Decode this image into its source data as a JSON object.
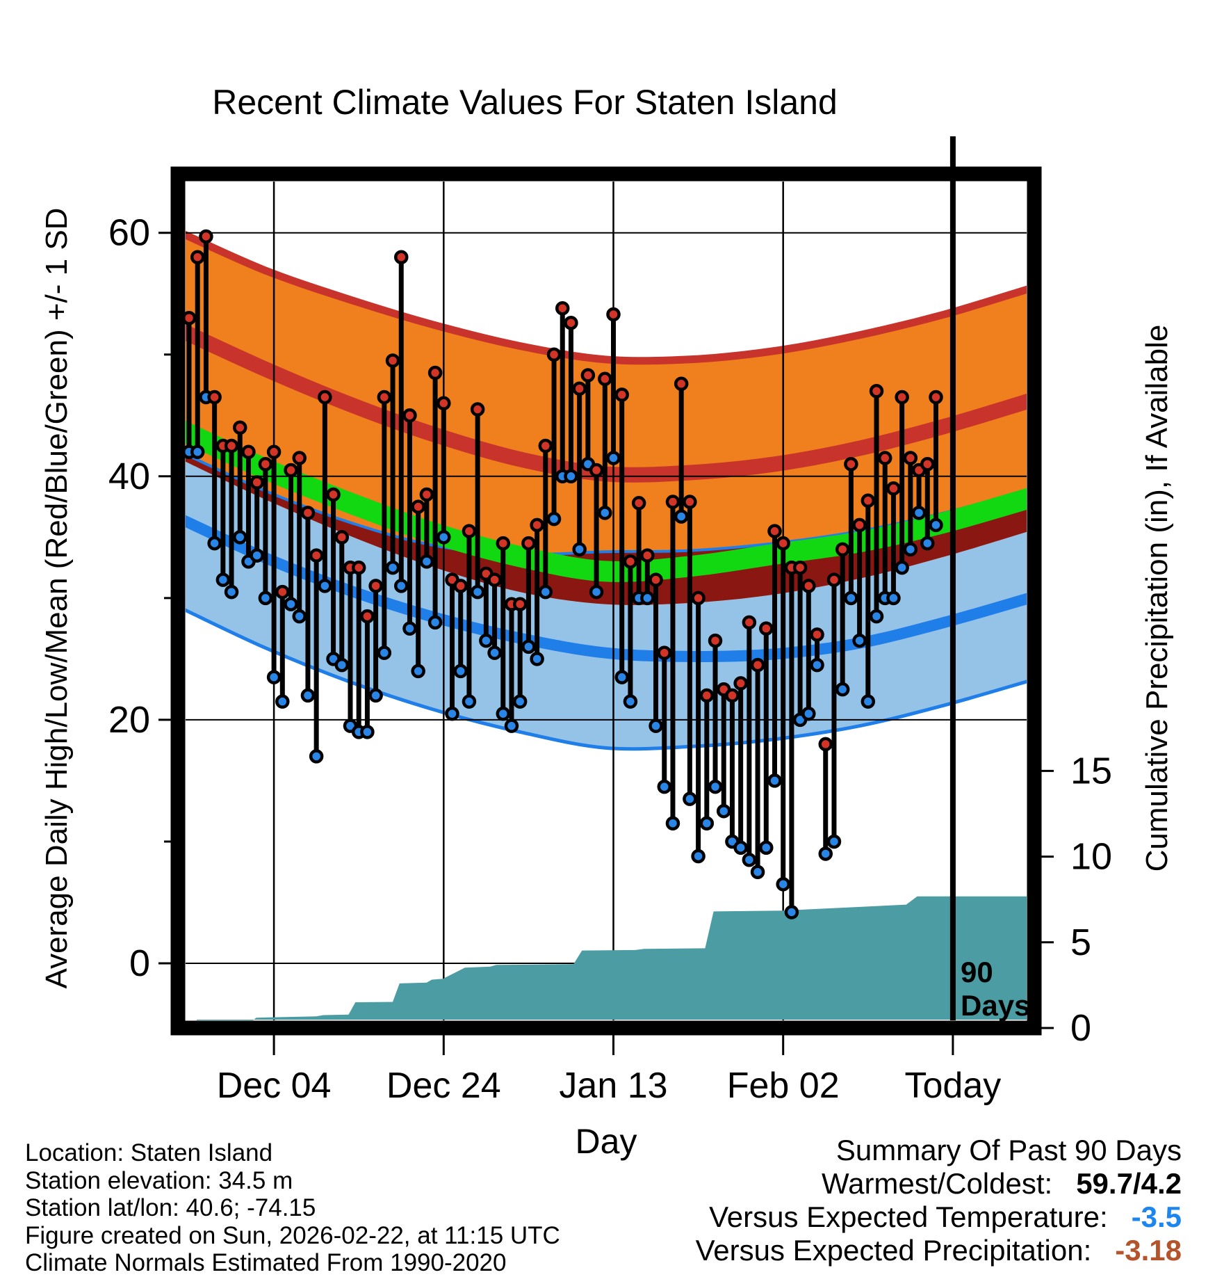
{
  "title": "Recent Climate Values For Staten Island",
  "axis": {
    "left_title": "Average Daily High/Low/Mean (Red/Blue/Green) +/- 1 SD",
    "right_title": "Cumulative Precipitation (in), If Available",
    "x_title": "Day"
  },
  "footer_left": {
    "lines": [
      "Location: Staten Island",
      "Station elevation: 34.5 m",
      "Station lat/lon: 40.6; -74.15",
      "Figure created on Sun, 2026-02-22, at 11:15 UTC",
      "Climate Normals Estimated From 1990-2020"
    ]
  },
  "summary": {
    "heading": "Summary Of Past 90 Days",
    "rows": [
      {
        "label": "Warmest/Coldest:",
        "value": "59.7/4.2",
        "color": "#000000"
      },
      {
        "label": "Versus Expected Temperature:",
        "value": "-3.5",
        "color": "#1C86EE"
      },
      {
        "label": "Versus Expected Precipitation:",
        "value": "-3.18",
        "color": "#B4542C"
      }
    ]
  },
  "chart_data": {
    "type": "line",
    "title": "Recent Climate Values For Staten Island",
    "xlabel": "Day",
    "ylabel_left": "Average Daily High/Low/Mean (Red/Blue/Green) +/- 1 SD",
    "ylabel_right": "Cumulative Precipitation (in), If Available",
    "grid": true,
    "x_ticks": [
      {
        "label": "Dec 04",
        "day": 11
      },
      {
        "label": "Dec 24",
        "day": 31
      },
      {
        "label": "Jan 13",
        "day": 51
      },
      {
        "label": "Feb 02",
        "day": 71
      },
      {
        "label": "Today",
        "day": 91
      }
    ],
    "y_left_ticks": [
      0,
      20,
      40,
      60
    ],
    "y_left_minor_ticks": [
      10,
      30,
      50
    ],
    "y_right_ticks": [
      0,
      5,
      10,
      15
    ],
    "ninety_line_day": 91,
    "ninety_label": [
      "90",
      "Days"
    ],
    "bands": {
      "note": "climate normal curves, deg F, sampled every 10 days",
      "days": [
        0,
        10,
        20,
        30,
        40,
        50,
        60,
        70,
        80,
        90,
        100
      ],
      "high_plus_sd": [
        60.0,
        56.9,
        54.5,
        52.4,
        50.7,
        49.6,
        49.6,
        50.3,
        51.6,
        53.3,
        55.4
      ],
      "high_mean": [
        52.0,
        48.8,
        45.9,
        43.4,
        41.4,
        40.2,
        40.3,
        41.0,
        42.3,
        44.1,
        46.2
      ],
      "mean": [
        43.8,
        40.6,
        37.8,
        35.3,
        33.4,
        32.2,
        32.6,
        33.6,
        34.6,
        36.2,
        38.2
      ],
      "high_minus_sd": [
        41.4,
        38.1,
        35.1,
        32.5,
        30.5,
        29.5,
        29.6,
        30.3,
        31.6,
        33.4,
        35.5
      ],
      "low_plus_sd": [
        42.0,
        38.8,
        36.2,
        34.3,
        33.6,
        33.8,
        33.9,
        34.5,
        35.5,
        37.0,
        38.9
      ],
      "low_mean": [
        36.5,
        33.3,
        30.6,
        28.4,
        26.7,
        25.5,
        25.2,
        25.4,
        26.3,
        28.0,
        30.0
      ],
      "low_minus_sd": [
        29.2,
        25.9,
        23.1,
        20.8,
        19.0,
        17.7,
        17.8,
        18.4,
        19.5,
        21.2,
        23.2
      ]
    },
    "daily": {
      "note": "day 1 = start of 90-day window; observed daily high/low deg F",
      "days": [
        1,
        2,
        3,
        4,
        5,
        6,
        7,
        8,
        9,
        10,
        11,
        12,
        13,
        14,
        15,
        16,
        17,
        18,
        19,
        20,
        21,
        22,
        23,
        24,
        25,
        26,
        27,
        28,
        29,
        30,
        31,
        32,
        33,
        34,
        35,
        36,
        37,
        38,
        39,
        40,
        41,
        42,
        43,
        44,
        45,
        46,
        47,
        48,
        49,
        50,
        51,
        52,
        53,
        54,
        55,
        56,
        57,
        58,
        59,
        60,
        61,
        62,
        63,
        64,
        65,
        66,
        67,
        68,
        69,
        70,
        71,
        72,
        73,
        74,
        75,
        76,
        77,
        78,
        79,
        80,
        81,
        82,
        83,
        84,
        85,
        86,
        87,
        88,
        89
      ],
      "high": [
        53,
        58,
        59.7,
        46.5,
        42.5,
        42.5,
        44,
        42,
        39.5,
        41,
        42,
        30.5,
        40.5,
        41.5,
        37,
        33.5,
        46.5,
        38.5,
        35,
        32.5,
        32.5,
        28.5,
        31,
        46.5,
        49.5,
        58,
        45,
        37.5,
        38.5,
        48.5,
        46,
        31.5,
        31,
        35.5,
        45.5,
        32,
        31.5,
        34.5,
        29.5,
        29.5,
        34.5,
        36,
        42.5,
        50,
        53.8,
        52.6,
        47.2,
        48.3,
        40.5,
        48,
        53.3,
        46.7,
        33,
        37.8,
        33.5,
        31.5,
        25.5,
        37.9,
        47.6,
        37.9,
        30,
        22,
        26.5,
        22.5,
        22,
        23,
        28,
        24.5,
        27.5,
        35.5,
        34.5,
        32.5,
        32.5,
        31,
        27,
        18,
        31.5,
        34,
        41,
        36,
        38,
        47,
        41.5,
        39,
        46.5,
        41.5,
        40.5,
        41,
        46.5
      ],
      "low": [
        42,
        42,
        46.5,
        34.5,
        31.5,
        30.5,
        35,
        33,
        33.5,
        30,
        23.5,
        21.5,
        29.5,
        28.5,
        22,
        17,
        31,
        25,
        24.5,
        19.5,
        19,
        19,
        22,
        25.5,
        32.5,
        31,
        27.5,
        24,
        33,
        28,
        35,
        20.5,
        24,
        21.5,
        30.5,
        26.5,
        25.5,
        20.5,
        19.5,
        21.5,
        26,
        25,
        30.5,
        36.5,
        40,
        40,
        34,
        41,
        30.5,
        37,
        41.5,
        23.5,
        21.5,
        30,
        30,
        19.5,
        14.5,
        11.5,
        36.7,
        13.5,
        8.8,
        11.5,
        14.5,
        12.5,
        10,
        9.5,
        8.5,
        7.5,
        9.5,
        15,
        6.5,
        4.2,
        20,
        20.5,
        24.5,
        9,
        10,
        22.5,
        30,
        26.5,
        21.5,
        28.5,
        30,
        30,
        32.5,
        34,
        37,
        34.5,
        36
      ]
    },
    "precip_cumulative": {
      "units": "in",
      "points": [
        [
          1.9,
          0
        ],
        [
          2.5,
          0.25
        ],
        [
          8.2,
          0.3
        ],
        [
          8.9,
          0.6
        ],
        [
          16,
          0.68
        ],
        [
          16.8,
          0.75
        ],
        [
          19.8,
          0.78
        ],
        [
          20.6,
          1.5
        ],
        [
          25,
          1.52
        ],
        [
          25.8,
          2.6
        ],
        [
          29,
          2.65
        ],
        [
          29.6,
          2.82
        ],
        [
          30.9,
          2.87
        ],
        [
          33.5,
          3.52
        ],
        [
          36.5,
          3.58
        ],
        [
          37.2,
          3.68
        ],
        [
          46.3,
          3.72
        ],
        [
          47.3,
          4.52
        ],
        [
          53.6,
          4.55
        ],
        [
          54.6,
          4.62
        ],
        [
          61.8,
          4.65
        ],
        [
          62.8,
          6.8
        ],
        [
          71,
          6.85
        ],
        [
          85.5,
          7.2
        ],
        [
          86.8,
          7.68
        ],
        [
          100,
          7.68
        ]
      ],
      "final_value": 7.68
    },
    "colors": {
      "high_band_fill": "#F0801E",
      "high_band_edge": "#C8342C",
      "high_mean_line": "#C8342C",
      "overlap_band": "#8B1712",
      "mean_line": "#12D812",
      "low_band_fill": "#95C3E8",
      "low_band_edge": "#1F7EE8",
      "low_mean_line": "#1F7EE8",
      "dot_high": "#D23528",
      "dot_low": "#2A86E6",
      "stem": "#000000",
      "precip_fill": "#4C9CA4",
      "frame": "#000000"
    }
  }
}
